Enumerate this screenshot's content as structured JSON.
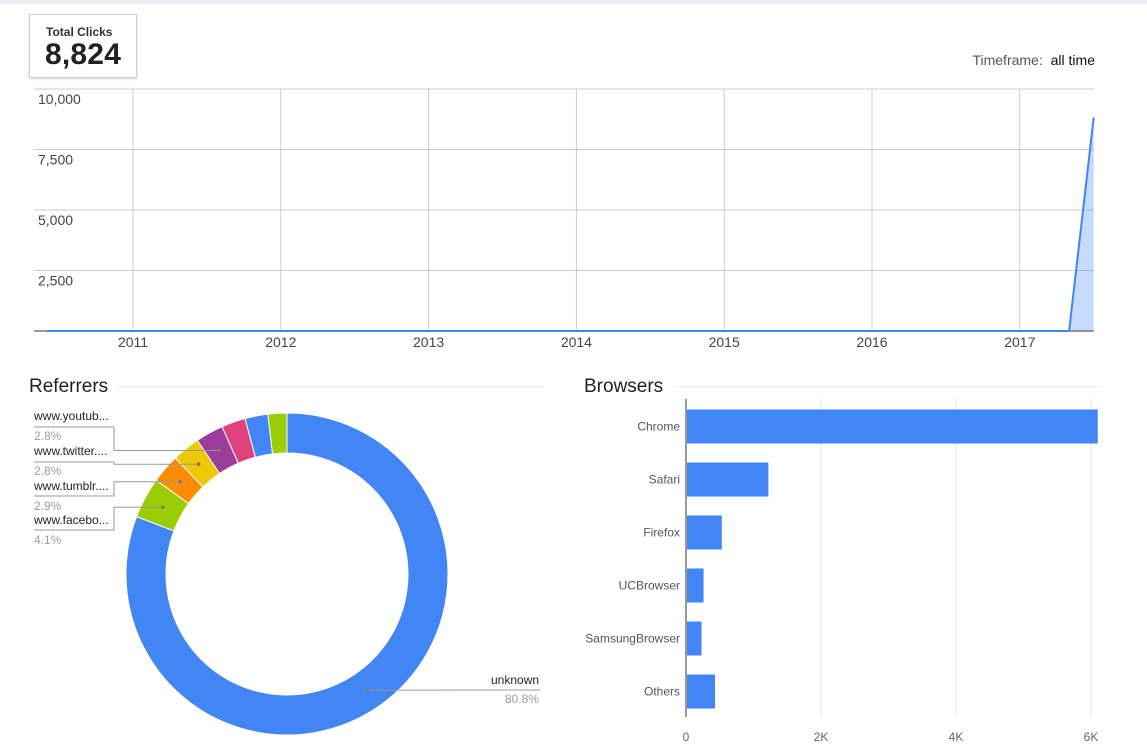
{
  "summary": {
    "label": "Total Clicks",
    "value": "8,824"
  },
  "timeframe": {
    "label": "Timeframe:",
    "value": "all time"
  },
  "colors": {
    "accent": "#4285f4",
    "grid": "#cccccc"
  },
  "chart_data": [
    {
      "type": "area",
      "title": "",
      "ylim": [
        0,
        10000
      ],
      "yticks": [
        2500,
        5000,
        7500,
        10000
      ],
      "ytick_labels": [
        "2,500",
        "5,000",
        "7,500",
        "10,000"
      ],
      "xticks": [
        2011,
        2012,
        2013,
        2014,
        2015,
        2016,
        2017
      ],
      "xtick_labels": [
        "2011",
        "2012",
        "2013",
        "2014",
        "2015",
        "2016",
        "2017"
      ],
      "x": [
        "2010-06",
        "2017-05",
        "2017-07"
      ],
      "values": [
        0,
        0,
        8824
      ],
      "grid": true
    },
    {
      "type": "pie",
      "title": "Referrers",
      "donut": true,
      "slices": [
        {
          "label": "unknown",
          "value": 80.8,
          "pct_label": "80.8%",
          "color": "#4285f4"
        },
        {
          "label": "www.facebo...",
          "value": 4.1,
          "pct_label": "4.1%",
          "color": "#9acd06"
        },
        {
          "label": "www.tumblr....",
          "value": 2.9,
          "pct_label": "2.9%",
          "color": "#ff8c00"
        },
        {
          "label": "www.twitter....",
          "value": 2.8,
          "pct_label": "2.8%",
          "color": "#f0c800"
        },
        {
          "label": "www.youtub...",
          "value": 2.8,
          "pct_label": "2.8%",
          "color": "#9c3d9c"
        },
        {
          "label": "",
          "value": 2.4,
          "pct_label": "",
          "color": "#e0427b"
        },
        {
          "label": "",
          "value": 2.3,
          "pct_label": "",
          "color": "#4285f4"
        },
        {
          "label": "",
          "value": 1.9,
          "pct_label": "",
          "color": "#9acd06"
        }
      ]
    },
    {
      "type": "bar",
      "orientation": "horizontal",
      "title": "Browsers",
      "categories": [
        "Chrome",
        "Safari",
        "Firefox",
        "UCBrowser",
        "SamsungBrowser",
        "Others"
      ],
      "values": [
        6100,
        1220,
        530,
        260,
        230,
        430
      ],
      "xlim": [
        0,
        6000
      ],
      "xticks": [
        0,
        2000,
        4000,
        6000
      ],
      "xtick_labels": [
        "0",
        "2K",
        "4K",
        "6K"
      ],
      "color": "#4285f4",
      "grid": true
    }
  ]
}
